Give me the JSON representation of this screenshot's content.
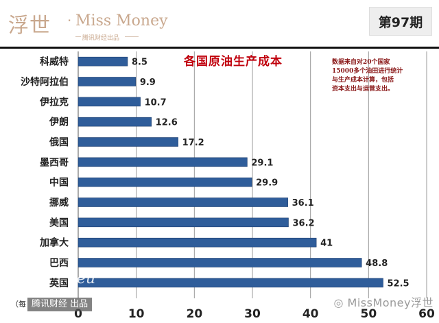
{
  "header": {
    "logo_cn": "浮世",
    "logo_dot": "·",
    "logo_en": "Miss Money",
    "logo_sub": "腾讯财经出品",
    "issue": "第97期"
  },
  "chart_data": {
    "type": "bar",
    "orientation": "horizontal",
    "title": "各国原油生产成本",
    "categories": [
      "科威特",
      "沙特阿拉伯",
      "伊拉克",
      "伊朗",
      "俄国",
      "墨西哥",
      "中国",
      "挪威",
      "美国",
      "加拿大",
      "巴西",
      "英国"
    ],
    "values": [
      8.5,
      9.9,
      10.7,
      12.6,
      17.2,
      29.1,
      29.9,
      36.1,
      36.2,
      41,
      48.8,
      52.5
    ],
    "value_labels": [
      "8.5",
      "9.9",
      "10.7",
      "12.6",
      "17.2",
      "29.1",
      "29.9",
      "36.1",
      "36.2",
      "41",
      "48.8",
      "52.5"
    ],
    "xlim": [
      0,
      60
    ],
    "xticks": [
      0,
      10,
      20,
      30,
      40,
      50,
      60
    ],
    "xtick_labels": [
      "0",
      "10",
      "20",
      "30",
      "40",
      "50",
      "60"
    ],
    "xlabel": "",
    "ylabel": "",
    "grid": "vertical",
    "legend": "none",
    "bar_color": "#2f5d9a",
    "notes": [
      "数据来自对20个国家",
      "15000多个油田进行统计",
      "与生产成本计算，包括",
      "资本支出与运营支出。"
    ]
  },
  "watermarks": {
    "left_clipped_text": "（每",
    "left_label": "腾讯财经 出品",
    "right_label": "MissMoney浮世",
    "ghost_text": "eu"
  },
  "colors": {
    "accent": "#c9a88e",
    "title_red": "#c0000c",
    "notes_red": "#8b1a1a",
    "bar": "#2f5d9a"
  }
}
